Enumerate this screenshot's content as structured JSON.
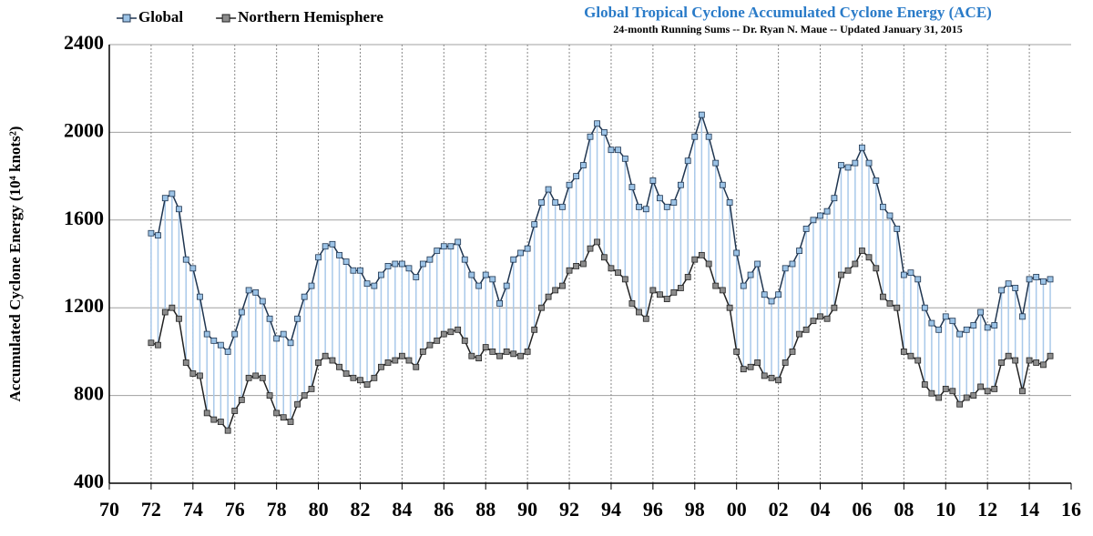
{
  "chart_data": {
    "type": "line",
    "title": "Global Tropical Cyclone Accumulated Cyclone Energy (ACE)",
    "subtitle": "24-month Running Sums -- Dr. Ryan N. Maue -- Updated January 31, 2015",
    "y_label": "Accumulated Cyclone Energy (10⁴ knots²)",
    "legend": "top-left",
    "grid": true,
    "xlim": [
      1970,
      2016
    ],
    "xticks": [
      {
        "value": 1970,
        "label": "70"
      },
      {
        "value": 1972,
        "label": "72"
      },
      {
        "value": 1974,
        "label": "74"
      },
      {
        "value": 1976,
        "label": "76"
      },
      {
        "value": 1978,
        "label": "78"
      },
      {
        "value": 1980,
        "label": "80"
      },
      {
        "value": 1982,
        "label": "82"
      },
      {
        "value": 1984,
        "label": "84"
      },
      {
        "value": 1986,
        "label": "86"
      },
      {
        "value": 1988,
        "label": "88"
      },
      {
        "value": 1990,
        "label": "90"
      },
      {
        "value": 1992,
        "label": "92"
      },
      {
        "value": 1994,
        "label": "94"
      },
      {
        "value": 1996,
        "label": "96"
      },
      {
        "value": 1998,
        "label": "98"
      },
      {
        "value": 2000,
        "label": "00"
      },
      {
        "value": 2002,
        "label": "02"
      },
      {
        "value": 2004,
        "label": "04"
      },
      {
        "value": 2006,
        "label": "06"
      },
      {
        "value": 2008,
        "label": "08"
      },
      {
        "value": 2010,
        "label": "10"
      },
      {
        "value": 2012,
        "label": "12"
      },
      {
        "value": 2014,
        "label": "14"
      },
      {
        "value": 2016,
        "label": "16"
      }
    ],
    "ylim": [
      400,
      2400
    ],
    "yticks": [
      400,
      800,
      1200,
      1600,
      2000,
      2400
    ],
    "x": [
      1972,
      1972.33,
      1972.67,
      1973,
      1973.33,
      1973.67,
      1974,
      1974.33,
      1974.67,
      1975,
      1975.33,
      1975.67,
      1976,
      1976.33,
      1976.67,
      1977,
      1977.33,
      1977.67,
      1978,
      1978.33,
      1978.67,
      1979,
      1979.33,
      1979.67,
      1980,
      1980.33,
      1980.67,
      1981,
      1981.33,
      1981.67,
      1982,
      1982.33,
      1982.67,
      1983,
      1983.33,
      1983.67,
      1984,
      1984.33,
      1984.67,
      1985,
      1985.33,
      1985.67,
      1986,
      1986.33,
      1986.67,
      1987,
      1987.33,
      1987.67,
      1988,
      1988.33,
      1988.67,
      1989,
      1989.33,
      1989.67,
      1990,
      1990.33,
      1990.67,
      1991,
      1991.33,
      1991.67,
      1992,
      1992.33,
      1992.67,
      1993,
      1993.33,
      1993.67,
      1994,
      1994.33,
      1994.67,
      1995,
      1995.33,
      1995.67,
      1996,
      1996.33,
      1996.67,
      1997,
      1997.33,
      1997.67,
      1998,
      1998.33,
      1998.67,
      1999,
      1999.33,
      1999.67,
      2000,
      2000.33,
      2000.67,
      2001,
      2001.33,
      2001.67,
      2002,
      2002.33,
      2002.67,
      2003,
      2003.33,
      2003.67,
      2004,
      2004.33,
      2004.67,
      2005,
      2005.33,
      2005.67,
      2006,
      2006.33,
      2006.67,
      2007,
      2007.33,
      2007.67,
      2008,
      2008.33,
      2008.67,
      2009,
      2009.33,
      2009.67,
      2010,
      2010.33,
      2010.67,
      2011,
      2011.33,
      2011.67,
      2012,
      2012.33,
      2012.67,
      2013,
      2013.33,
      2013.67,
      2014,
      2014.33,
      2014.67,
      2015
    ],
    "series": [
      {
        "name": "Global",
        "color": "#9cc3e6",
        "edge": "#1f3550",
        "values": [
          1540,
          1530,
          1700,
          1720,
          1650,
          1420,
          1380,
          1250,
          1080,
          1050,
          1030,
          1000,
          1080,
          1180,
          1280,
          1270,
          1230,
          1150,
          1060,
          1080,
          1040,
          1150,
          1250,
          1300,
          1430,
          1480,
          1490,
          1440,
          1410,
          1370,
          1370,
          1310,
          1300,
          1350,
          1390,
          1400,
          1400,
          1380,
          1340,
          1400,
          1420,
          1460,
          1480,
          1480,
          1500,
          1420,
          1350,
          1300,
          1350,
          1330,
          1220,
          1300,
          1420,
          1450,
          1470,
          1580,
          1680,
          1740,
          1680,
          1660,
          1760,
          1800,
          1850,
          1980,
          2040,
          2000,
          1920,
          1920,
          1880,
          1750,
          1660,
          1650,
          1780,
          1700,
          1660,
          1680,
          1760,
          1870,
          1980,
          2080,
          1980,
          1860,
          1760,
          1680,
          1450,
          1300,
          1350,
          1400,
          1260,
          1230,
          1260,
          1380,
          1400,
          1460,
          1560,
          1600,
          1620,
          1640,
          1700,
          1850,
          1840,
          1860,
          1930,
          1860,
          1780,
          1660,
          1620,
          1560,
          1350,
          1360,
          1330,
          1200,
          1130,
          1100,
          1160,
          1140,
          1080,
          1100,
          1120,
          1180,
          1110,
          1120,
          1280,
          1310,
          1290,
          1160,
          1330,
          1340,
          1320,
          1330
        ]
      },
      {
        "name": "Northern Hemisphere",
        "color": "#8c8c8c",
        "edge": "#222222",
        "values": [
          1040,
          1030,
          1180,
          1200,
          1150,
          950,
          900,
          890,
          720,
          690,
          680,
          640,
          730,
          780,
          880,
          890,
          880,
          800,
          720,
          700,
          680,
          760,
          800,
          830,
          950,
          980,
          960,
          930,
          900,
          880,
          870,
          850,
          880,
          930,
          950,
          960,
          980,
          960,
          930,
          1000,
          1030,
          1050,
          1080,
          1090,
          1100,
          1050,
          980,
          970,
          1020,
          1000,
          980,
          1000,
          990,
          980,
          1000,
          1100,
          1200,
          1250,
          1280,
          1300,
          1370,
          1390,
          1400,
          1470,
          1500,
          1430,
          1380,
          1360,
          1330,
          1220,
          1180,
          1150,
          1280,
          1260,
          1240,
          1270,
          1290,
          1340,
          1420,
          1440,
          1400,
          1300,
          1280,
          1200,
          1000,
          920,
          930,
          950,
          890,
          880,
          870,
          950,
          1000,
          1080,
          1100,
          1140,
          1160,
          1150,
          1200,
          1350,
          1370,
          1400,
          1460,
          1430,
          1380,
          1250,
          1220,
          1200,
          1000,
          980,
          960,
          850,
          810,
          790,
          830,
          820,
          760,
          790,
          800,
          840,
          820,
          830,
          950,
          980,
          960,
          820,
          960,
          950,
          940,
          980
        ]
      }
    ]
  }
}
